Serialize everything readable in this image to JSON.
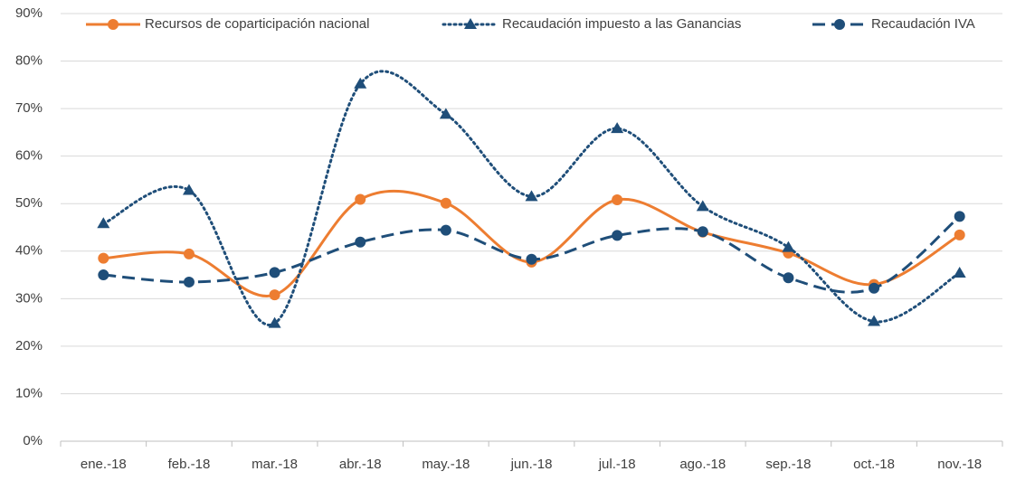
{
  "chart_data": {
    "type": "line",
    "categories": [
      "ene.-18",
      "feb.-18",
      "mar.-18",
      "abr.-18",
      "may.-18",
      "jun.-18",
      "jul.-18",
      "ago.-18",
      "sep.-18",
      "oct.-18",
      "nov.-18"
    ],
    "series": [
      {
        "name": "Recursos de coparticipación nacional",
        "color": "#ed7d31",
        "line_style": "solid",
        "marker": "circle",
        "values": [
          38.5,
          39.4,
          30.8,
          50.9,
          50.1,
          37.7,
          50.8,
          44.0,
          39.6,
          33.0,
          43.4
        ]
      },
      {
        "name": "Recaudación impuesto a las Ganancias",
        "color": "#1f4e79",
        "line_style": "dotted",
        "marker": "triangle",
        "values": [
          45.8,
          52.8,
          24.8,
          75.2,
          68.8,
          51.5,
          65.8,
          49.4,
          40.8,
          25.2,
          35.4
        ]
      },
      {
        "name": "Recaudación IVA",
        "color": "#1f4e79",
        "line_style": "dashed",
        "marker": "circle",
        "values": [
          35.0,
          33.5,
          35.5,
          41.9,
          44.4,
          38.3,
          43.3,
          44.1,
          34.4,
          32.2,
          47.3
        ]
      }
    ],
    "ylim": [
      0,
      90
    ],
    "yticks": [
      {
        "value": 0,
        "label": "0%"
      },
      {
        "value": 10,
        "label": "10%"
      },
      {
        "value": 20,
        "label": "20%"
      },
      {
        "value": 30,
        "label": "30%"
      },
      {
        "value": 40,
        "label": "40%"
      },
      {
        "value": 50,
        "label": "50%"
      },
      {
        "value": 60,
        "label": "60%"
      },
      {
        "value": 70,
        "label": "70%"
      },
      {
        "value": 80,
        "label": "80%"
      },
      {
        "value": 90,
        "label": "90%"
      }
    ],
    "grid": true,
    "smooth": true,
    "legend": "top"
  }
}
